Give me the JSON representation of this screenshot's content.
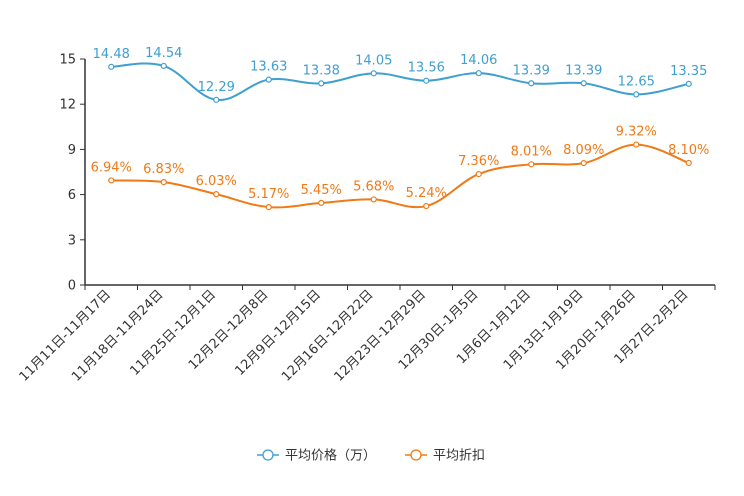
{
  "chart_data": {
    "type": "line",
    "title": "",
    "xlabel": "",
    "ylabel": "",
    "ylim": [
      0,
      15
    ],
    "yticks": [
      0,
      3,
      6,
      9,
      12,
      15
    ],
    "grid": false,
    "legend_position": "bottom-center",
    "categories": [
      "11月11日-11月17日",
      "11月18日-11月24日",
      "11月25日-12月1日",
      "12月2日-12月8日",
      "12月9日-12月15日",
      "12月16日-12月22日",
      "12月23日-12月29日",
      "12月30日-1月5日",
      "1月6日-1月12日",
      "1月13日-1月19日",
      "1月20日-1月26日",
      "1月27日-2月2日"
    ],
    "series": [
      {
        "name": "平均价格（万）",
        "color": "#3e9fd0",
        "values": [
          14.48,
          14.54,
          12.29,
          13.63,
          13.38,
          14.05,
          13.56,
          14.06,
          13.39,
          13.39,
          12.65,
          13.35
        ],
        "labels": [
          "14.48",
          "14.54",
          "12.29",
          "13.63",
          "13.38",
          "14.05",
          "13.56",
          "14.06",
          "13.39",
          "13.39",
          "12.65",
          "13.35"
        ]
      },
      {
        "name": "平均折扣",
        "color": "#f07a16",
        "values": [
          6.94,
          6.83,
          6.03,
          5.17,
          5.45,
          5.68,
          5.24,
          7.36,
          8.01,
          8.09,
          9.32,
          8.1
        ],
        "labels": [
          "6.94%",
          "6.83%",
          "6.03%",
          "5.17%",
          "5.45%",
          "5.68%",
          "5.24%",
          "7.36%",
          "8.01%",
          "8.09%",
          "9.32%",
          "8.10%"
        ]
      }
    ]
  }
}
